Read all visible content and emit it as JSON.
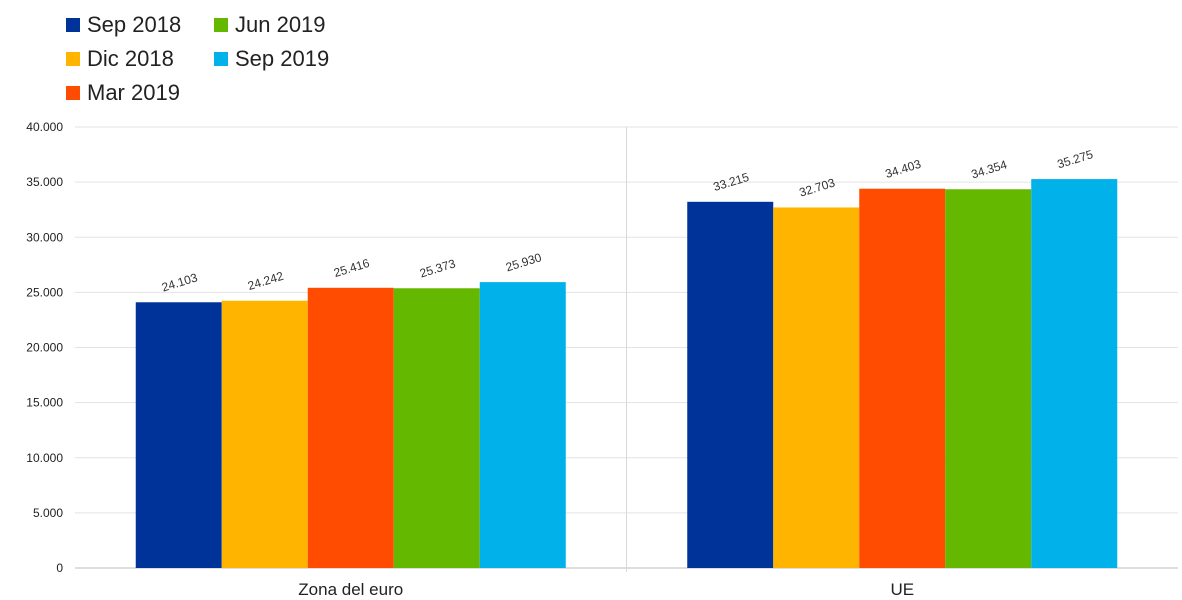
{
  "chart_data": {
    "type": "bar",
    "categories": [
      "Zona del euro",
      "UE"
    ],
    "series": [
      {
        "name": "Sep 2018",
        "color": "#003399",
        "values": [
          24103,
          33215
        ],
        "labels": [
          "24.103",
          "33.215"
        ]
      },
      {
        "name": "Dic 2018",
        "color": "#ffb400",
        "values": [
          24242,
          32703
        ],
        "labels": [
          "24.242",
          "32.703"
        ]
      },
      {
        "name": "Mar 2019",
        "color": "#ff4c00",
        "values": [
          25416,
          34403
        ],
        "labels": [
          "25.416",
          "34.403"
        ]
      },
      {
        "name": "Jun 2019",
        "color": "#65b800",
        "values": [
          25373,
          34354
        ],
        "labels": [
          "25.373",
          "34.354"
        ]
      },
      {
        "name": "Sep 2019",
        "color": "#00b1ea",
        "values": [
          25930,
          35275
        ],
        "labels": [
          "25.930",
          "35.275"
        ]
      }
    ],
    "yticks": [
      "0",
      "5.000",
      "10.000",
      "15.000",
      "20.000",
      "25.000",
      "30.000",
      "35.000",
      "40.000"
    ],
    "ylim": [
      0,
      40000
    ],
    "grid": true,
    "legend_position": "top-left"
  }
}
